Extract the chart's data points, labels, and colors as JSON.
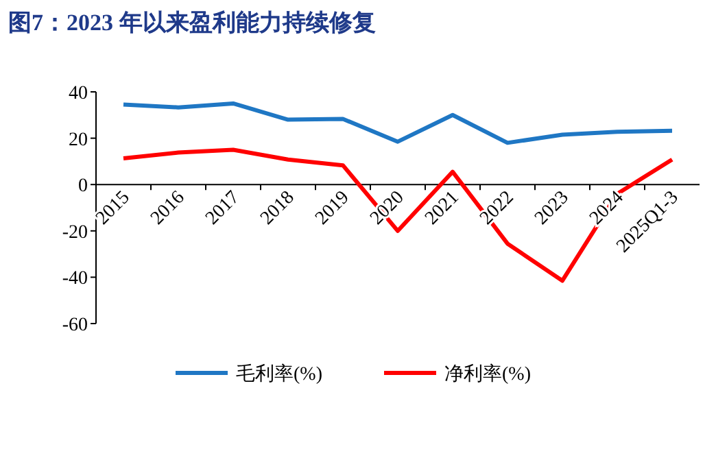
{
  "chart_data": {
    "type": "line",
    "title": "图7：2023 年以来盈利能力持续修复",
    "categories": [
      "2015",
      "2016",
      "2017",
      "2018",
      "2019",
      "2020",
      "2021",
      "2022",
      "2023",
      "2024",
      "2025Q1-3"
    ],
    "series": [
      {
        "name": "毛利率(%)",
        "color": "#1f77c4",
        "values": [
          34.5,
          33.3,
          35,
          28,
          28.3,
          18.5,
          30,
          18,
          21.5,
          22.8,
          23.2
        ]
      },
      {
        "name": "净利率(%)",
        "color": "#ff0000",
        "values": [
          11.3,
          13.8,
          15,
          10.8,
          8.3,
          -20,
          5.5,
          -25.5,
          -41.5,
          -4,
          10.8
        ]
      }
    ],
    "ylim": [
      -60,
      40
    ],
    "yticks": [
      -60,
      -40,
      -20,
      0,
      20,
      40
    ],
    "grid": false,
    "legend": "bottom",
    "marker": "none",
    "line_style": "solid"
  }
}
